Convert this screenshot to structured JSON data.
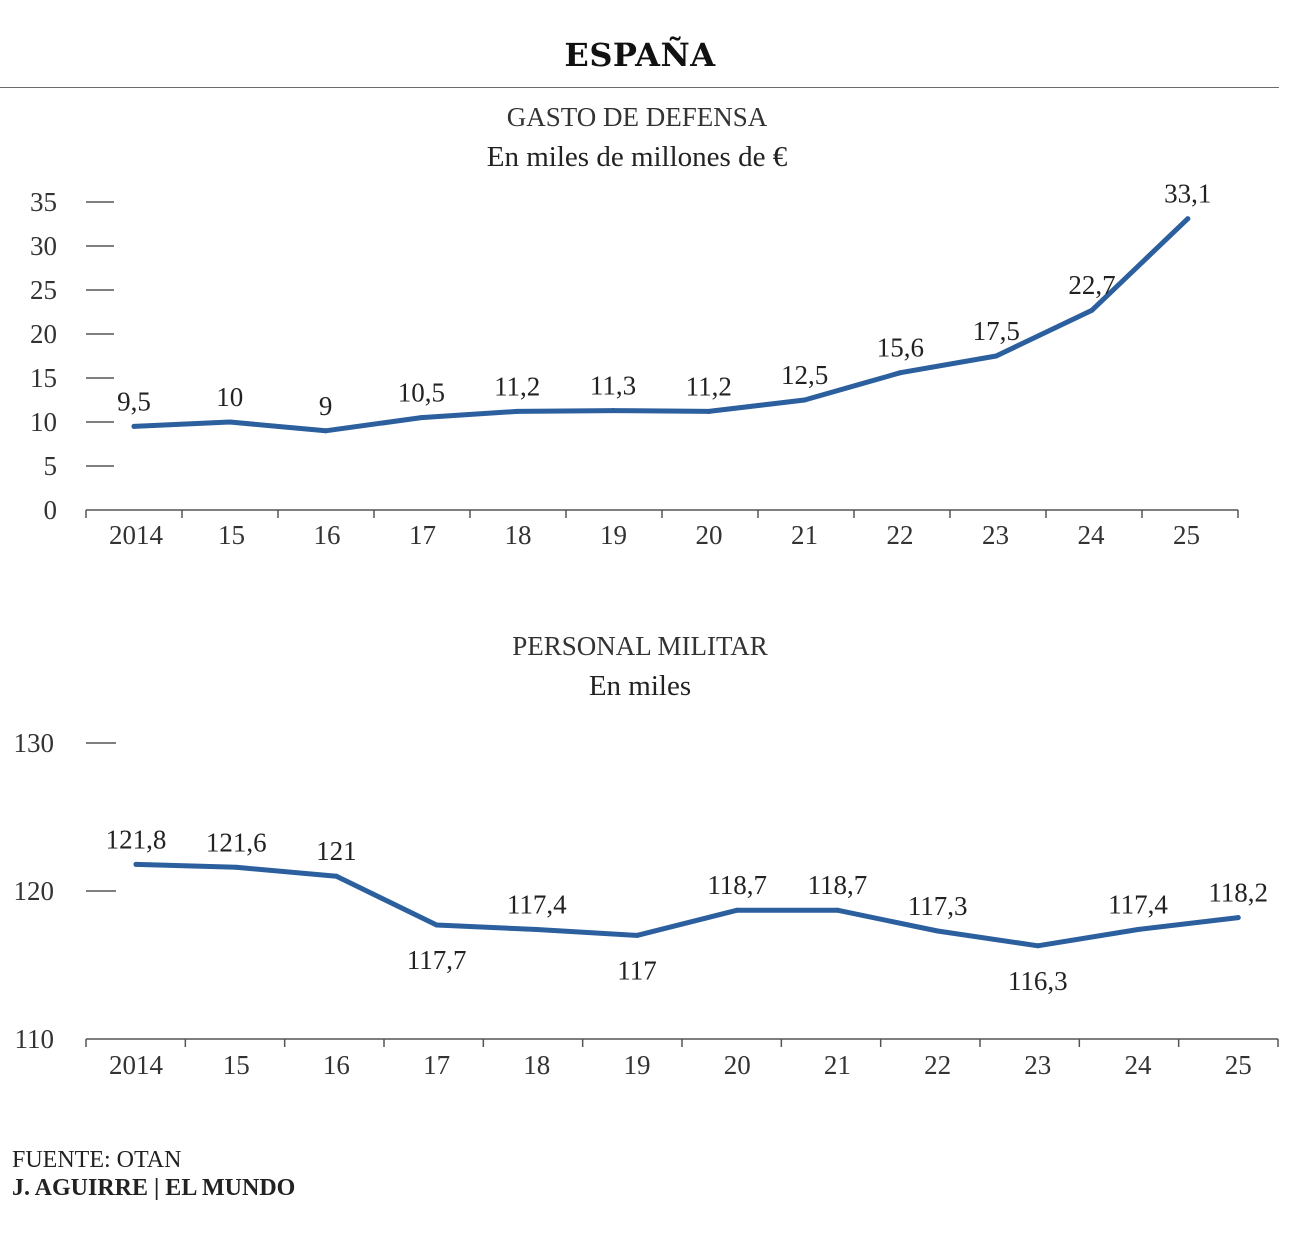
{
  "page": {
    "title": "ESPAÑA",
    "source": "FUENTE: OTAN",
    "credit": "J. AGUIRRE | EL MUNDO"
  },
  "colors": {
    "line": "#2b5f9e",
    "axis": "#555555",
    "text": "#222222"
  },
  "chart_data": [
    {
      "type": "line",
      "title": "GASTO DE DEFENSA",
      "subtitle": "En miles de millones de €",
      "categories": [
        "2014",
        "15",
        "16",
        "17",
        "18",
        "19",
        "20",
        "21",
        "22",
        "23",
        "24",
        "25"
      ],
      "values": [
        9.5,
        10,
        9,
        10.5,
        11.2,
        11.3,
        11.2,
        12.5,
        15.6,
        17.5,
        22.7,
        33.1
      ],
      "data_labels": [
        "9,5",
        "10",
        "9",
        "10,5",
        "11,2",
        "11,3",
        "11,2",
        "12,5",
        "15,6",
        "17,5",
        "22,7",
        "33,1"
      ],
      "yticks": [
        0,
        5,
        10,
        15,
        20,
        25,
        30,
        35
      ],
      "ylim": [
        0,
        35
      ],
      "grid": false,
      "legend": "none"
    },
    {
      "type": "line",
      "title": "PERSONAL MILITAR",
      "subtitle": "En miles",
      "categories": [
        "2014",
        "15",
        "16",
        "17",
        "18",
        "19",
        "20",
        "21",
        "22",
        "23",
        "24",
        "25"
      ],
      "values": [
        121.8,
        121.6,
        121,
        117.7,
        117.4,
        117,
        118.7,
        118.7,
        117.3,
        116.3,
        117.4,
        118.2
      ],
      "data_labels": [
        "121,8",
        "121,6",
        "121",
        "117,7",
        "117,4",
        "117",
        "118,7",
        "118,7",
        "117,3",
        "116,3",
        "117,4",
        "118,2"
      ],
      "label_below": [
        false,
        false,
        false,
        true,
        false,
        true,
        false,
        false,
        false,
        true,
        false,
        false
      ],
      "yticks": [
        110,
        120,
        130
      ],
      "ylim": [
        110,
        130
      ],
      "grid": false,
      "legend": "none"
    }
  ]
}
